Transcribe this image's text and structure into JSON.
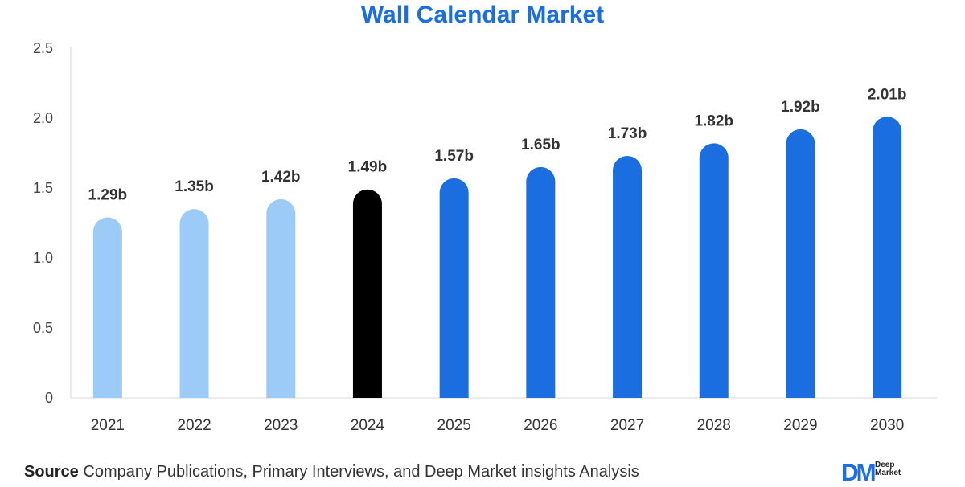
{
  "chart_data": {
    "type": "bar",
    "title": "Wall Calendar Market",
    "categories": [
      "2021",
      "2022",
      "2023",
      "2024",
      "2025",
      "2026",
      "2027",
      "2028",
      "2029",
      "2030"
    ],
    "values": [
      1.29,
      1.35,
      1.42,
      1.49,
      1.57,
      1.65,
      1.73,
      1.82,
      1.92,
      2.01
    ],
    "data_labels": [
      "1.29b",
      "1.35b",
      "1.42b",
      "1.49b",
      "1.57b",
      "1.65b",
      "1.73b",
      "1.82b",
      "1.92b",
      "2.01b"
    ],
    "ylim": [
      0,
      2.5
    ],
    "yticks": [
      "0",
      "0.5",
      "1.0",
      "1.5",
      "2.0",
      "2.5"
    ],
    "ytick_values": [
      0,
      0.5,
      1.0,
      1.5,
      2.0,
      2.5
    ],
    "xlabel": "",
    "ylabel": "",
    "grid": false,
    "legend": false,
    "bar_colors": [
      "#9ccbf7",
      "#9ccbf7",
      "#9ccbf7",
      "#000000",
      "#1a6ee0",
      "#1a6ee0",
      "#1a6ee0",
      "#1a6ee0",
      "#1a6ee0",
      "#1a6ee0"
    ],
    "title_color": "#1a6ee0"
  },
  "footer": {
    "source_label": "Source",
    "source_text": "Company Publications, Primary Interviews, and Deep Market insights Analysis"
  },
  "brand": {
    "mark": "DM",
    "name_line1": "Deep",
    "name_line2": "Market"
  }
}
